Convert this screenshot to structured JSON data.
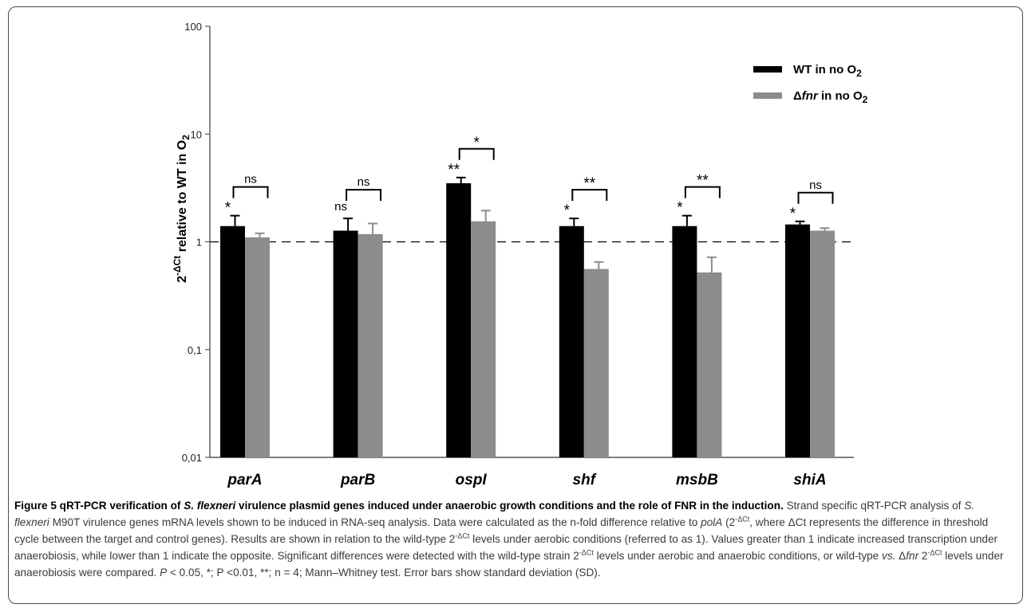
{
  "chart_data": {
    "type": "bar",
    "scale": "log",
    "ylim": [
      0.01,
      100
    ],
    "yticks": [
      "100",
      "10",
      "1",
      "0,1",
      "0,01"
    ],
    "ylabel": "2-ΔCt relative to WT in O2",
    "categories": [
      "parA",
      "parB",
      "ospI",
      "shf",
      "msbB",
      "shiA"
    ],
    "series": [
      {
        "name": "WT in no O2",
        "color": "#000000",
        "values": [
          1.4,
          1.27,
          3.5,
          1.4,
          1.4,
          1.45
        ],
        "errors": [
          0.35,
          0.38,
          0.45,
          0.25,
          0.35,
          0.1
        ]
      },
      {
        "name": "Δfnr in no O2",
        "color": "#8c8c8c",
        "values": [
          1.1,
          1.18,
          1.55,
          0.56,
          0.52,
          1.27
        ],
        "errors": [
          0.1,
          0.3,
          0.4,
          0.09,
          0.2,
          0.07
        ]
      }
    ],
    "wt_vs_aerobic_labels": [
      "*",
      "ns",
      "**",
      "*",
      "*",
      "*"
    ],
    "wt_vs_fnr_labels": [
      "ns",
      "ns",
      "*",
      "**",
      "**",
      "ns"
    ],
    "reference_line": 1,
    "legend_position": "top-right",
    "grid": false
  },
  "legend": {
    "wt": {
      "pre": "WT in no O",
      "sub": "2"
    },
    "fnr": {
      "pre": "Δ",
      "italic": "fnr",
      "post": " in no O",
      "sub": "2"
    }
  },
  "caption": {
    "fig_label": "Figure 5",
    "title_1": " qRT-PCR verification of ",
    "title_species": "S. flexneri",
    "title_2": " virulence plasmid genes induced under anaerobic growth conditions and the role of FNR in the induction.",
    "s1": " Strand specific qRT-PCR analysis of ",
    "s1_species": "S. flexneri",
    "s1_rest": " M90T virulence genes mRNA levels shown to be induced in RNA-seq analysis. Data were calculated as the n-fold difference relative to ",
    "s2_gene": "polA",
    "s2_open": " (2",
    "s2_sup": "-ΔCt",
    "s2_rest": ", where ΔCt represents the difference in threshold cycle between the target and control genes). Results are shown in relation to the wild-type 2",
    "s3_sup": "-ΔCt",
    "s3_rest": " levels under aerobic conditions (referred to as 1). Values greater than 1 indicate increased transcription under anaerobiosis, while lower than 1 indicate the opposite. Significant differences were detected with the wild-type strain 2",
    "s4_sup": "-ΔCt",
    "s4_rest": " levels under aerobic and anaerobic conditions, or wild-type ",
    "s4_vs": "vs.",
    "s4_delta": " Δ",
    "s4_fnr": "fnr",
    "s4_two": " 2",
    "s5_sup": "-ΔCt",
    "s5_rest": " levels under anaerobiosis were compared. ",
    "s5_p": "P",
    "s5_end": " < 0.05, *; P <0.01, **; n = 4; Mann–Whitney test. Error bars show standard deviation (SD)."
  }
}
